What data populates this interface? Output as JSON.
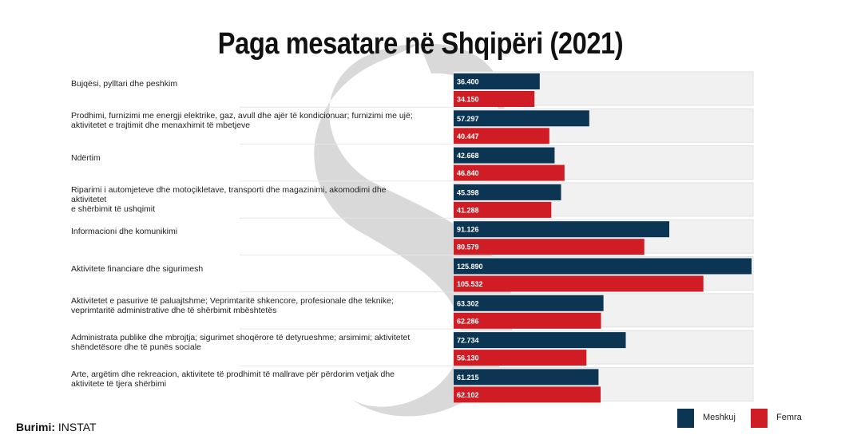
{
  "title": "Paga mesatare në Shqipëri (2021)",
  "source": {
    "label": "Burimi:",
    "value": "INSTAT"
  },
  "colors": {
    "meshkuj": "#0b3553",
    "femra": "#d01c24",
    "row_bg": "#f1f1f1",
    "watermark": "#d4d4d4"
  },
  "watermark_icon": "logo-s-watermark",
  "legend": [
    {
      "label": "Meshkuj",
      "color": "#0b3553"
    },
    {
      "label": "Femra",
      "color": "#d01c24"
    }
  ],
  "chart_data": {
    "type": "bar",
    "orientation": "horizontal",
    "title": "Paga mesatare në Shqipëri (2021)",
    "xlabel": "",
    "ylabel": "",
    "xlim": [
      0,
      125890
    ],
    "grid": false,
    "legend_position": "bottom-right",
    "categories": [
      [
        "Bujqësi, pylltari dhe peshkim"
      ],
      [
        "Prodhimi, furnizimi me energji elektrike, gaz, avull dhe ajër të kondicionuar; furnizimi me ujë;",
        "aktivitetet e trajtimit dhe menaxhimit të mbetjeve"
      ],
      [
        "Ndërtim"
      ],
      [
        "Riparimi i automjeteve dhe motoçikletave, transporti dhe magazinimi, akomodimi dhe aktivitetet",
        "e shërbimit të ushqimit"
      ],
      [
        "Informacioni dhe komunikimi"
      ],
      [
        "Aktivitete financiare dhe sigurimesh"
      ],
      [
        "Aktivitetet e pasurive të paluajtshme; Veprimtaritë shkencore, profesionale dhe teknike;",
        "veprimtaritë administrative dhe të shërbimit mbështetës"
      ],
      [
        "Administrata publike dhe mbrojtja; sigurimet shoqërore të detyrueshme; arsimimi; aktivitetet",
        "shëndetësore dhe të punës sociale"
      ],
      [
        "Arte, argëtim dhe rekreacion, aktivitete të prodhimit të mallrave për përdorim vetjak dhe",
        "aktivitete të tjera shërbimi"
      ]
    ],
    "series": [
      {
        "name": "Meshkuj",
        "color": "#0b3553",
        "values": [
          36400,
          57297,
          42668,
          45398,
          91126,
          125890,
          63302,
          72734,
          61215
        ],
        "labels": [
          "36.400",
          "57.297",
          "42.668",
          "45.398",
          "91.126",
          "125.890",
          "63.302",
          "72.734",
          "61.215"
        ]
      },
      {
        "name": "Femra",
        "color": "#d01c24",
        "values": [
          34150,
          40447,
          46840,
          41288,
          80579,
          105532,
          62286,
          56130,
          62102
        ],
        "labels": [
          "34.150",
          "40.447",
          "46.840",
          "41.288",
          "80.579",
          "105.532",
          "62.286",
          "56.130",
          "62.102"
        ]
      }
    ]
  }
}
